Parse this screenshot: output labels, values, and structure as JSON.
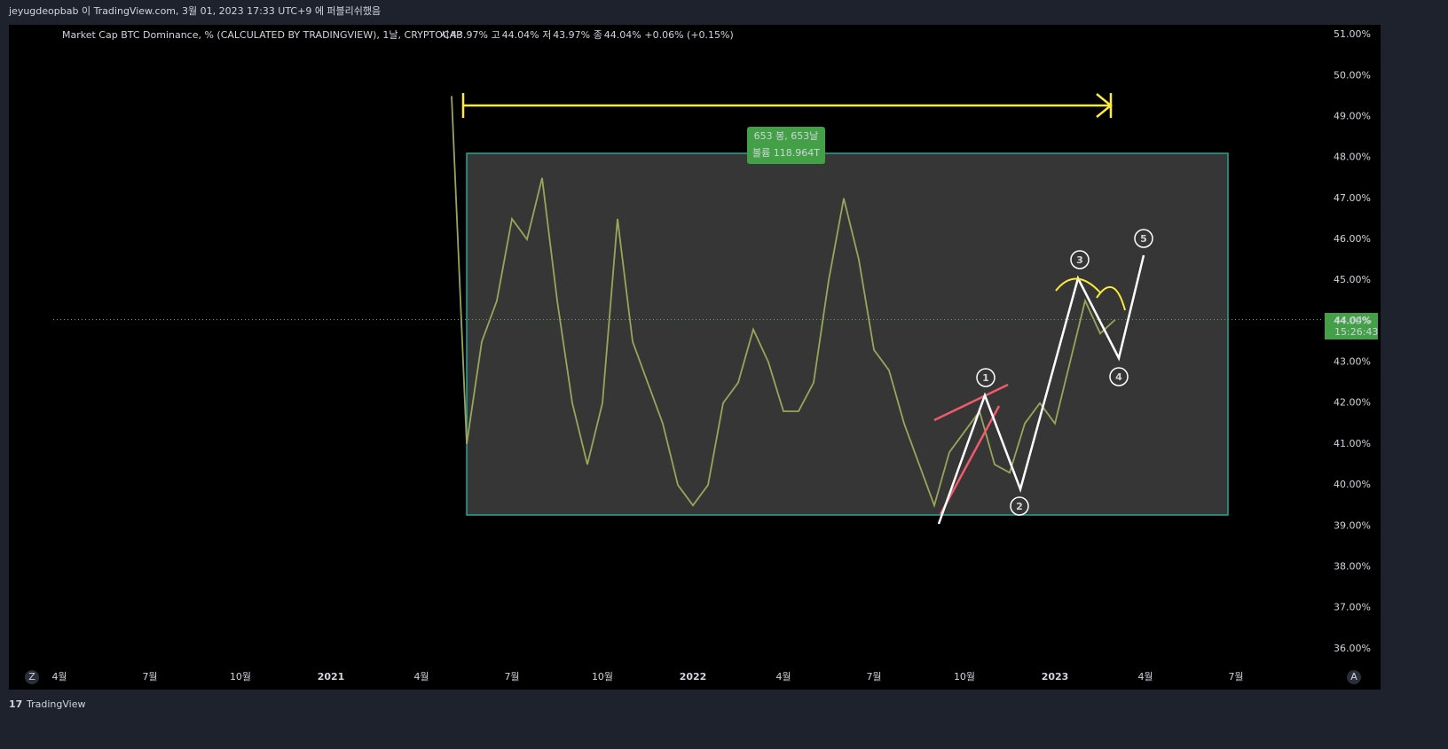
{
  "header": {
    "title": "jeyugdeopbab 이 TradingView.com, 3월 01, 2023 17:33 UTC+9 에 퍼블리쉬했음"
  },
  "chart_data": {
    "type": "line",
    "title": "Market Cap BTC Dominance, % (CALCULATED BY TRADINGVIEW), 1날, CRYPTOCAP",
    "ohlc": [
      {
        "key": "시",
        "value": "43.97%"
      },
      {
        "key": "고",
        "value": "44.04%"
      },
      {
        "key": "저",
        "value": "43.97%"
      },
      {
        "key": "종",
        "value": "44.04%"
      },
      {
        "key": "",
        "value": "+0.06% (+0.15%)"
      }
    ],
    "categories": [
      "4월",
      null,
      null,
      null,
      null,
      null,
      "7월",
      null,
      null,
      null,
      null,
      null,
      "10월",
      null,
      null,
      null,
      null,
      null,
      "2021",
      null,
      null,
      null,
      null,
      null,
      "4월",
      null,
      null,
      null,
      null,
      null,
      "7월",
      null,
      null,
      null,
      null,
      null,
      "10월",
      null,
      null,
      null,
      null,
      null,
      "2022",
      null,
      null,
      null,
      null,
      null,
      "4월",
      null,
      null,
      null,
      null,
      null,
      "7월",
      null,
      null,
      null,
      null,
      null,
      "10월",
      null,
      null,
      null,
      null,
      null,
      "2023",
      null,
      null,
      null,
      null,
      null,
      "4월",
      null,
      null,
      null,
      null,
      null,
      "7월",
      null
    ],
    "series": [
      {
        "name": "BTC.D",
        "color": "#9aa55a",
        "values": [
          null,
          null,
          null,
          null,
          null,
          null,
          null,
          null,
          null,
          null,
          null,
          null,
          null,
          null,
          null,
          null,
          null,
          null,
          null,
          null,
          null,
          null,
          null,
          null,
          null,
          null,
          49.5,
          41.0,
          43.5,
          44.5,
          46.5,
          46.0,
          47.5,
          44.5,
          42.0,
          40.5,
          42.0,
          46.5,
          43.5,
          42.5,
          41.5,
          40.0,
          39.5,
          40.0,
          42.0,
          42.5,
          43.8,
          43.0,
          41.8,
          41.8,
          42.5,
          45.0,
          47.0,
          45.5,
          43.3,
          42.8,
          41.5,
          40.5,
          39.5,
          40.8,
          41.3,
          41.8,
          40.5,
          40.3,
          41.5,
          42.0,
          41.5,
          43.0,
          44.5,
          43.7,
          44.04,
          null,
          null,
          null,
          null,
          null,
          null,
          null,
          null,
          null
        ]
      }
    ],
    "ylim": [
      35.65,
      51.24
    ],
    "yticks": [
      {
        "value": 36,
        "label": "36.00%"
      },
      {
        "value": 37,
        "label": "37.00%"
      },
      {
        "value": 38,
        "label": "38.00%"
      },
      {
        "value": 39,
        "label": "39.00%"
      },
      {
        "value": 40,
        "label": "40.00%"
      },
      {
        "value": 41,
        "label": "41.00%"
      },
      {
        "value": 42,
        "label": "42.00%"
      },
      {
        "value": 43,
        "label": "43.00%"
      },
      {
        "value": 44,
        "label": "44.00%"
      },
      {
        "value": 45,
        "label": "45.00%"
      },
      {
        "value": 46,
        "label": "46.00%"
      },
      {
        "value": 47,
        "label": "47.00%"
      },
      {
        "value": 48,
        "label": "48.00%"
      },
      {
        "value": 49,
        "label": "49.00%"
      },
      {
        "value": 50,
        "label": "50.00%"
      },
      {
        "value": 51,
        "label": "51.00%"
      }
    ],
    "price_tag": {
      "value": "44.04%",
      "countdown": "15:26:43"
    },
    "range_label": {
      "bars": "653 봉, 653날",
      "volume": "볼륨 118.964T"
    },
    "waves": [
      "1",
      "2",
      "3",
      "4",
      "5"
    ],
    "grid": false
  },
  "buttons": {
    "left": "Z",
    "right": "A"
  },
  "footer": {
    "brand": "TradingView"
  }
}
